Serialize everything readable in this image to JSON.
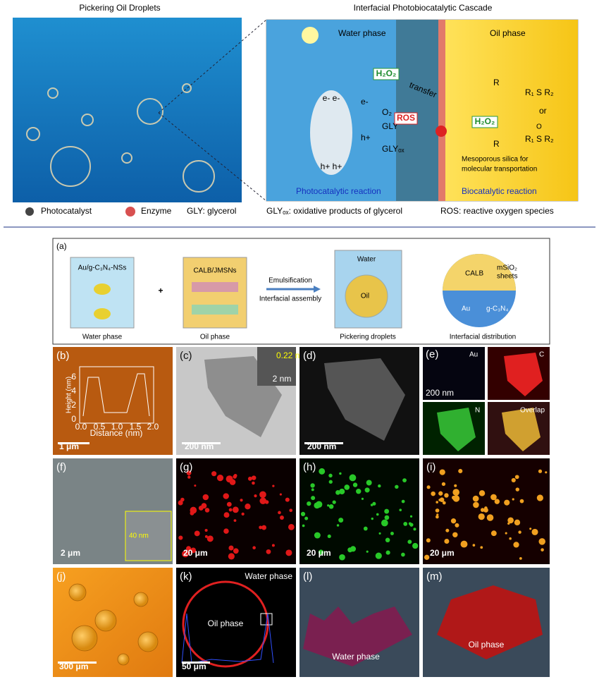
{
  "scheme": {
    "left_title": "Pickering Oil Droplets",
    "right_title": "Interfacial Photobiocatalytic Cascade",
    "water_phase": "Water phase",
    "oil_phase": "Oil phase",
    "h2o2_left": "H₂O₂",
    "transfer": "transfer",
    "e_top": "e- e-",
    "h_bottom": "h+ h+",
    "e_minus": "e-",
    "o2": "O₂",
    "h_plus": "h+",
    "gly": "GLY",
    "gly_ox": "GLYₒₓ",
    "ros": "ROS",
    "h2o2_right": "H₂O₂",
    "r_alkene": "R",
    "r_epoxide": "R",
    "or": "or",
    "sulfide": "R₁ S R₂",
    "sulfoxide": "R₁ S R₂",
    "sulfoxide_o": "O",
    "silica_1": "Mesoporous silica for",
    "silica_2": "molecular transportation",
    "photo_reaction": "Photocatalytic reaction",
    "bio_reaction": "Biocatalytic reaction"
  },
  "legend": {
    "photocatalyst": "Photocatalyst",
    "enzyme": "Enzyme",
    "gly": "GLY: glycerol",
    "gly_ox": "GLYₒₓ: oxidative products of glycerol",
    "ros": "ROS: reactive oxygen species"
  },
  "panel_a": {
    "label": "(a)",
    "catalyst": "Au/g-C₃N₄-NSs",
    "water_phase": "Water phase",
    "plus": "+",
    "enzyme": "CALB/JMSNs",
    "oil_phase": "Oil phase",
    "step_1": "Emulsification",
    "step_2": "Interfacial assembly",
    "water": "Water",
    "oil": "Oil",
    "droplets": "Pickering droplets",
    "calb": "CALB",
    "msio2_1": "mSiO₂",
    "msio2_2": "sheets",
    "au": "Au",
    "gcn": "g-C₃N₄",
    "distribution": "Interfacial distribution"
  },
  "panels": {
    "b": {
      "label": "(b)",
      "scale": "1 μm",
      "y_axis": "Height (nm)",
      "x_axis": "Distance (nm)",
      "yticks": [
        "0",
        "2",
        "4",
        "6"
      ],
      "xticks": [
        "0.0",
        "0.5",
        "1.0",
        "1.5",
        "2.0"
      ]
    },
    "c": {
      "label": "(c)",
      "scale": "200 nm",
      "lattice": "0.22 nm",
      "inset_scale": "2 nm"
    },
    "d": {
      "label": "(d)",
      "scale": "200 nm"
    },
    "e": {
      "label": "(e)",
      "au": "Au",
      "scale": "200 nm",
      "c": "C",
      "n": "N",
      "overlap": "Overlap"
    },
    "f": {
      "label": "(f)",
      "scale": "2 μm",
      "inset": "40 nm"
    },
    "g": {
      "label": "(g)",
      "scale": "20 μm"
    },
    "h": {
      "label": "(h)",
      "scale": "20 μm"
    },
    "i": {
      "label": "(i)",
      "scale": "20 μm"
    },
    "j": {
      "label": "(j)",
      "scale": "300 μm"
    },
    "k": {
      "label": "(k)",
      "water": "Water phase",
      "oil": "Oil phase",
      "scale": "50 μm"
    },
    "l": {
      "label": "(l)",
      "water": "Water phase"
    },
    "m": {
      "label": "(m)",
      "oil": "Oil phase"
    }
  }
}
